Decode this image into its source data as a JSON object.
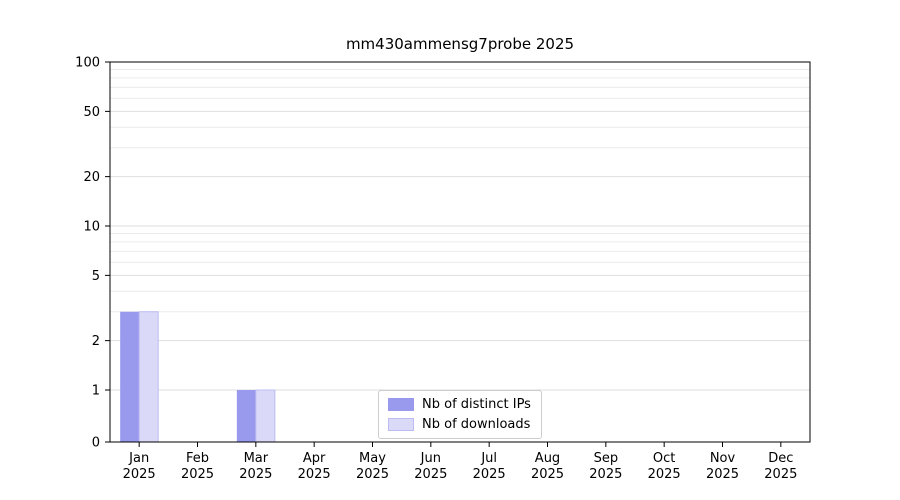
{
  "chart_data": {
    "type": "bar",
    "title": "mm430ammensg7probe 2025",
    "categories": [
      "Jan",
      "Feb",
      "Mar",
      "Apr",
      "May",
      "Jun",
      "Jul",
      "Aug",
      "Sep",
      "Oct",
      "Nov",
      "Dec"
    ],
    "year_label": "2025",
    "series": [
      {
        "name": "Nb of distinct IPs",
        "color": "#9999ee",
        "values": [
          3,
          0,
          1,
          0,
          0,
          0,
          0,
          0,
          0,
          0,
          0,
          0
        ]
      },
      {
        "name": "Nb of downloads",
        "color": "#dadaf8",
        "edge_color": "#bcbcf2",
        "values": [
          3,
          0,
          1,
          0,
          0,
          0,
          0,
          0,
          0,
          0,
          0,
          0
        ]
      }
    ],
    "yticks": [
      0,
      1,
      2,
      5,
      10,
      20,
      50,
      100
    ],
    "ylim": [
      0,
      100
    ],
    "scale": "symlog",
    "grid": "horizontal",
    "legend_position": "lower center",
    "colors": {
      "axis": "#000000",
      "major_grid": "#dedede",
      "minor_grid": "#ececec",
      "tick_label": "#000000",
      "background": "#ffffff"
    }
  }
}
